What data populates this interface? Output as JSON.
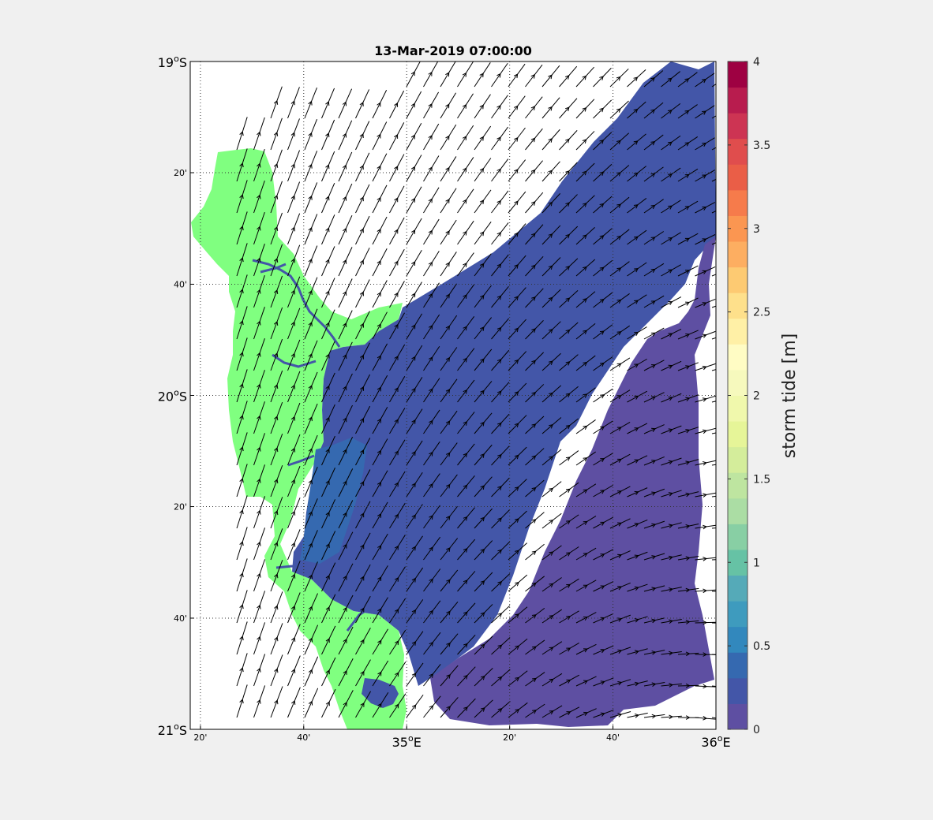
{
  "title": "13-Mar-2019 07:00:00",
  "map": {
    "lon_range": [
      34.3,
      36.0
    ],
    "lat_range": [
      -21.0,
      -19.0
    ],
    "lat_ticks": [
      {
        "value": -19.0,
        "major": "19",
        "minor": "",
        "suffix": "S"
      },
      {
        "value": -19.333,
        "major": "",
        "minor": "20'",
        "suffix": ""
      },
      {
        "value": -19.667,
        "major": "",
        "minor": "40'",
        "suffix": ""
      },
      {
        "value": -20.0,
        "major": "20",
        "minor": "",
        "suffix": "S"
      },
      {
        "value": -20.333,
        "major": "",
        "minor": "20'",
        "suffix": ""
      },
      {
        "value": -20.667,
        "major": "",
        "minor": "40'",
        "suffix": ""
      },
      {
        "value": -21.0,
        "major": "21",
        "minor": "",
        "suffix": "S"
      }
    ],
    "lon_ticks": [
      {
        "value": 34.333,
        "major": "",
        "minor": "20'",
        "suffix": ""
      },
      {
        "value": 34.667,
        "major": "",
        "minor": "40'",
        "suffix": ""
      },
      {
        "value": 35.0,
        "major": "35",
        "minor": "",
        "suffix": "E"
      },
      {
        "value": 35.333,
        "major": "",
        "minor": "20'",
        "suffix": ""
      },
      {
        "value": 35.667,
        "major": "",
        "minor": "40'",
        "suffix": ""
      },
      {
        "value": 36.0,
        "major": "36",
        "minor": "",
        "suffix": "E"
      }
    ],
    "grid": "dotted",
    "layers": {
      "land_color": "#80ff80",
      "storm_tide_low_color": "#3f5eae",
      "storm_tide_lowest_color": "#5a4ea2",
      "storm_tide_shallow_color": "#3370b8",
      "vector_color": "#000000"
    }
  },
  "colorbar": {
    "label": "storm tide [m]",
    "min": 0,
    "max": 4,
    "ticks": [
      "0",
      "0.5",
      "1",
      "1.5",
      "2",
      "2.5",
      "3",
      "3.5",
      "4"
    ],
    "tick_values": [
      0,
      0.5,
      1,
      1.5,
      2,
      2.5,
      3,
      3.5,
      4
    ],
    "colors": [
      "#5e4fa2",
      "#4356a8",
      "#3569b0",
      "#3288bd",
      "#3e9bbe",
      "#55aab8",
      "#66c2a5",
      "#88cfa4",
      "#abdda4",
      "#bee5a0",
      "#d4ed9b",
      "#e6f598",
      "#f0f8ac",
      "#f6f9bd",
      "#fffcc4",
      "#fff0a6",
      "#fee08b",
      "#fdca72",
      "#fdae61",
      "#fb9651",
      "#f67b4b",
      "#ea5e47",
      "#e04d4d",
      "#cd3453",
      "#b81c4e",
      "#9e0142"
    ]
  }
}
